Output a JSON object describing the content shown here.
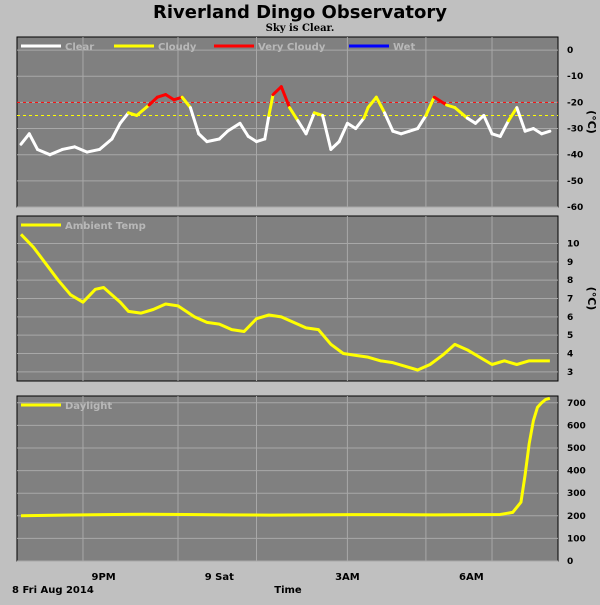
{
  "header": {
    "title": "Riverland Dingo Observatory",
    "subtitle": "Sky is Clear."
  },
  "footer": {
    "date_label": "8 Fri Aug 2014",
    "time_label": "Time",
    "x_ticks": [
      "9PM",
      "9 Sat",
      "3AM",
      "6AM"
    ]
  },
  "colors": {
    "panel": "#808080",
    "grid": "#a8a8a8",
    "clear": "#ffffff",
    "cloudy": "#ffff00",
    "very_cloudy": "#ff0000",
    "wet": "#0000ff",
    "threshold_red": "#ff0000",
    "threshold_yellow": "#ffff00"
  },
  "chart_data": [
    {
      "type": "line",
      "ylabel": "(°C)",
      "ylim": [
        -60,
        5
      ],
      "yticks": [
        0,
        -10,
        -20,
        -30,
        -40,
        -50,
        -60
      ],
      "x_unit": "hours since 18:00",
      "xlim": [
        0,
        12.9
      ],
      "legend": [
        {
          "name": "Clear",
          "color": "#ffffff"
        },
        {
          "name": "Cloudy",
          "color": "#ffff00"
        },
        {
          "name": "Very Cloudy",
          "color": "#ff0000"
        },
        {
          "name": "Wet",
          "color": "#0000ff"
        }
      ],
      "thresholds": [
        -20,
        -25
      ],
      "series": [
        {
          "x": [
            0.0,
            0.2,
            0.4,
            0.7,
            1.0,
            1.3,
            1.6,
            1.9,
            2.2,
            2.4,
            2.6,
            2.8,
            3.1,
            3.3,
            3.5,
            3.7,
            3.9,
            4.1,
            4.3,
            4.5,
            4.8,
            5.0,
            5.3,
            5.5,
            5.7,
            5.9,
            6.0,
            6.1,
            6.3,
            6.5,
            6.7,
            6.9,
            7.1,
            7.3,
            7.5,
            7.7,
            7.9,
            8.1,
            8.3,
            8.4,
            8.6,
            8.8,
            9.0,
            9.2,
            9.4,
            9.6,
            9.8,
            10.0,
            10.3,
            10.5,
            10.8,
            11.0,
            11.2,
            11.4,
            11.6,
            11.8,
            12.0,
            12.2,
            12.4,
            12.6,
            12.8
          ],
          "values": [
            -36,
            -32,
            -38,
            -40,
            -38,
            -37,
            -39,
            -38,
            -34,
            -28,
            -24,
            -25,
            -21,
            -18,
            -17,
            -19,
            -18,
            -22,
            -32,
            -35,
            -34,
            -31,
            -28,
            -33,
            -35,
            -34,
            -25,
            -17,
            -14,
            -22,
            -27,
            -32,
            -24,
            -25,
            -38,
            -35,
            -28,
            -30,
            -26,
            -22,
            -18,
            -24,
            -31,
            -32,
            -31,
            -30,
            -25,
            -18,
            -21,
            -22,
            -26,
            -28,
            -25,
            -32,
            -33,
            -27,
            -22,
            -31,
            -30,
            -32,
            -31
          ]
        }
      ]
    },
    {
      "type": "line",
      "ylabel": "(°C)",
      "ylim": [
        2.5,
        11.5
      ],
      "yticks": [
        10,
        9,
        8,
        7,
        6,
        5,
        4,
        3
      ],
      "x_unit": "hours since 18:00",
      "xlim": [
        0,
        12.9
      ],
      "legend": [
        {
          "name": "Ambient Temp",
          "color": "#ffff00"
        }
      ],
      "series": [
        {
          "name": "Ambient Temp",
          "x": [
            0.0,
            0.3,
            0.6,
            0.9,
            1.2,
            1.5,
            1.8,
            2.0,
            2.2,
            2.4,
            2.6,
            2.9,
            3.2,
            3.5,
            3.8,
            4.0,
            4.2,
            4.5,
            4.8,
            5.1,
            5.4,
            5.7,
            6.0,
            6.3,
            6.6,
            6.9,
            7.2,
            7.5,
            7.8,
            8.1,
            8.4,
            8.7,
            9.0,
            9.3,
            9.6,
            9.9,
            10.2,
            10.5,
            10.8,
            11.1,
            11.4,
            11.7,
            12.0,
            12.3,
            12.6,
            12.8
          ],
          "values": [
            10.5,
            9.8,
            8.9,
            8.0,
            7.2,
            6.8,
            7.5,
            7.6,
            7.2,
            6.8,
            6.3,
            6.2,
            6.4,
            6.7,
            6.6,
            6.3,
            6.0,
            5.7,
            5.6,
            5.3,
            5.2,
            5.9,
            6.1,
            6.0,
            5.7,
            5.4,
            5.3,
            4.5,
            4.0,
            3.9,
            3.8,
            3.6,
            3.5,
            3.3,
            3.1,
            3.4,
            3.9,
            4.5,
            4.2,
            3.8,
            3.4,
            3.6,
            3.4,
            3.6,
            3.6,
            3.6
          ]
        }
      ]
    },
    {
      "type": "line",
      "ylim": [
        0,
        730
      ],
      "yticks": [
        700,
        600,
        500,
        400,
        300,
        200,
        100,
        0
      ],
      "x_unit": "hours since 18:00",
      "xlim": [
        0,
        12.9
      ],
      "legend": [
        {
          "name": "Daylight",
          "color": "#ffff00"
        }
      ],
      "series": [
        {
          "name": "Daylight",
          "x": [
            0.0,
            1.0,
            2.0,
            3.0,
            4.0,
            5.0,
            6.0,
            7.0,
            8.0,
            9.0,
            10.0,
            11.0,
            11.6,
            11.9,
            12.1,
            12.2,
            12.3,
            12.4,
            12.5,
            12.6,
            12.7,
            12.8
          ],
          "values": [
            200,
            203,
            205,
            207,
            206,
            204,
            203,
            204,
            205,
            205,
            204,
            205,
            206,
            215,
            260,
            380,
            520,
            620,
            680,
            700,
            715,
            720
          ]
        }
      ]
    }
  ]
}
